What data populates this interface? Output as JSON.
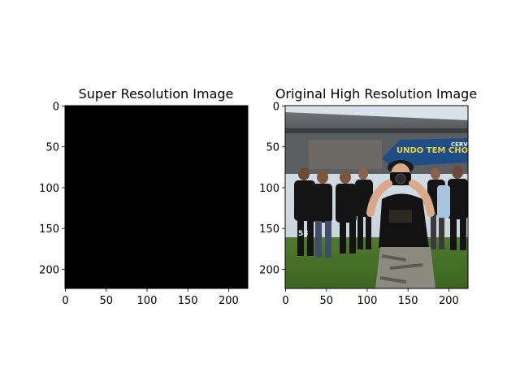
{
  "chart_data": [
    {
      "type": "image",
      "title": "Super Resolution Image",
      "content": "solid black",
      "fill": "#000000",
      "xlim": [
        0,
        223
      ],
      "ylim": [
        223,
        0
      ],
      "xticks": [
        0,
        50,
        100,
        150,
        200
      ],
      "yticks": [
        0,
        50,
        100,
        150,
        200
      ]
    },
    {
      "type": "image",
      "title": "Original High Resolution Image",
      "content": "photo",
      "xlim": [
        0,
        223
      ],
      "ylim": [
        223,
        0
      ],
      "xticks": [
        0,
        50,
        100,
        150,
        200
      ],
      "yticks": [
        0,
        50,
        100,
        150,
        200
      ],
      "photo_text": [
        "UNDO TEM CHOPP",
        "CERV PURA",
        "53"
      ]
    }
  ]
}
